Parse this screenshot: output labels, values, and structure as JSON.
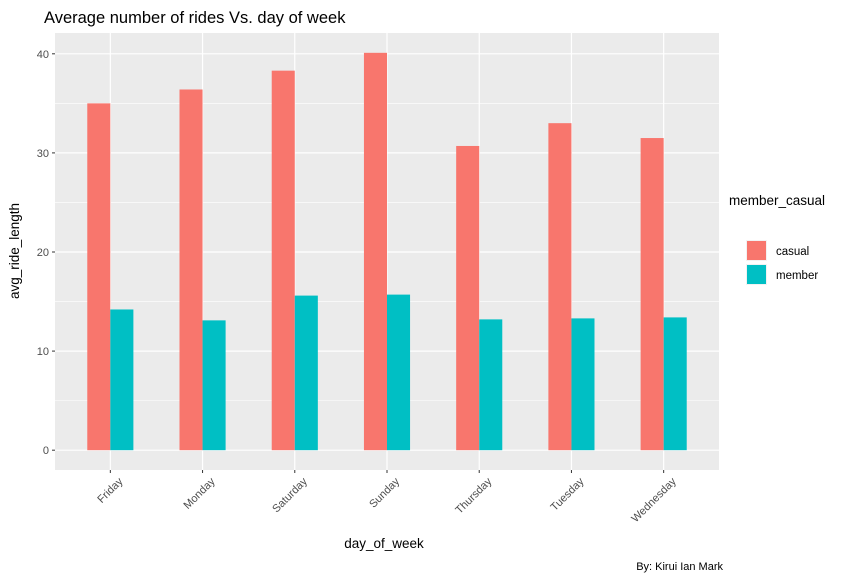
{
  "chart_data": {
    "type": "bar",
    "title": "Average number of rides Vs. day of week",
    "xlabel": "day_of_week",
    "ylabel": "avg_ride_length",
    "caption": "By: Kirui Ian Mark",
    "categories": [
      "Friday",
      "Monday",
      "Saturday",
      "Sunday",
      "Thursday",
      "Tuesday",
      "Wednesday"
    ],
    "series": [
      {
        "name": "casual",
        "color": "#F8766D",
        "values": [
          35.0,
          36.4,
          38.3,
          40.1,
          30.7,
          33.0,
          31.5
        ]
      },
      {
        "name": "member",
        "color": "#00BFC4",
        "values": [
          14.2,
          13.1,
          15.6,
          15.7,
          13.2,
          13.3,
          13.4
        ]
      }
    ],
    "ylim": [
      -2.0,
      42.1
    ],
    "yticks": [
      0,
      10,
      20,
      30,
      40
    ],
    "grid": true,
    "panel_background": "#EBEBEB",
    "legend": {
      "title": "member_casual",
      "position": "right"
    }
  }
}
